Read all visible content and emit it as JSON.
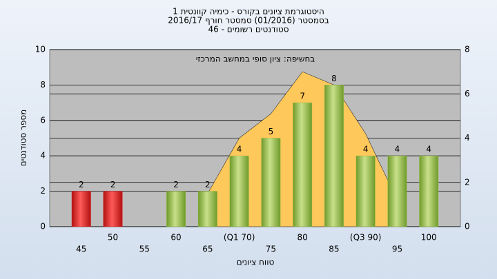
{
  "chart_data": {
    "type": "bar",
    "title": [
      "היסטוגרמת ציונים בקורס - כימיה קוונטית 1",
      "בסמסטר  (01/2016)  סמסטר חורף 2016/17",
      "סטודנטים רשומים - 46"
    ],
    "annotation": "בחשיפה: ציון סופי במחשב המרכזי",
    "x_label": "טווח ציונים",
    "y_label": "מספר סטודנטים",
    "categories": [
      "45",
      "50",
      "55",
      "60",
      "65",
      "(Q1 70)",
      "75",
      "80",
      "85",
      "(Q3 90)",
      "95",
      "100"
    ],
    "series": [
      {
        "type": "bar",
        "values": [
          2,
          2,
          null,
          2,
          2,
          4,
          5,
          7,
          8,
          4,
          4,
          4
        ],
        "colors": [
          "#dd2222",
          "#dd2222",
          "#8fbb44",
          "#8fbb44",
          "#8fbb44",
          "#8fbb44",
          "#8fbb44",
          "#8fbb44",
          "#8fbb44",
          "#8fbb44",
          "#8fbb44",
          "#8fbb44"
        ]
      },
      {
        "type": "area",
        "axis": "y2",
        "color": "#ffc85a",
        "values": [
          null,
          null,
          null,
          null,
          1.5,
          4.0,
          5.1,
          7.0,
          6.4,
          4.2,
          1.2,
          null
        ]
      }
    ],
    "ylim": [
      0,
      10
    ],
    "yticks": [
      0,
      2,
      4,
      6,
      8,
      10
    ],
    "y2lim": [
      0,
      8
    ],
    "y2ticks": [
      0,
      2,
      4,
      6,
      8
    ],
    "grid": true
  }
}
